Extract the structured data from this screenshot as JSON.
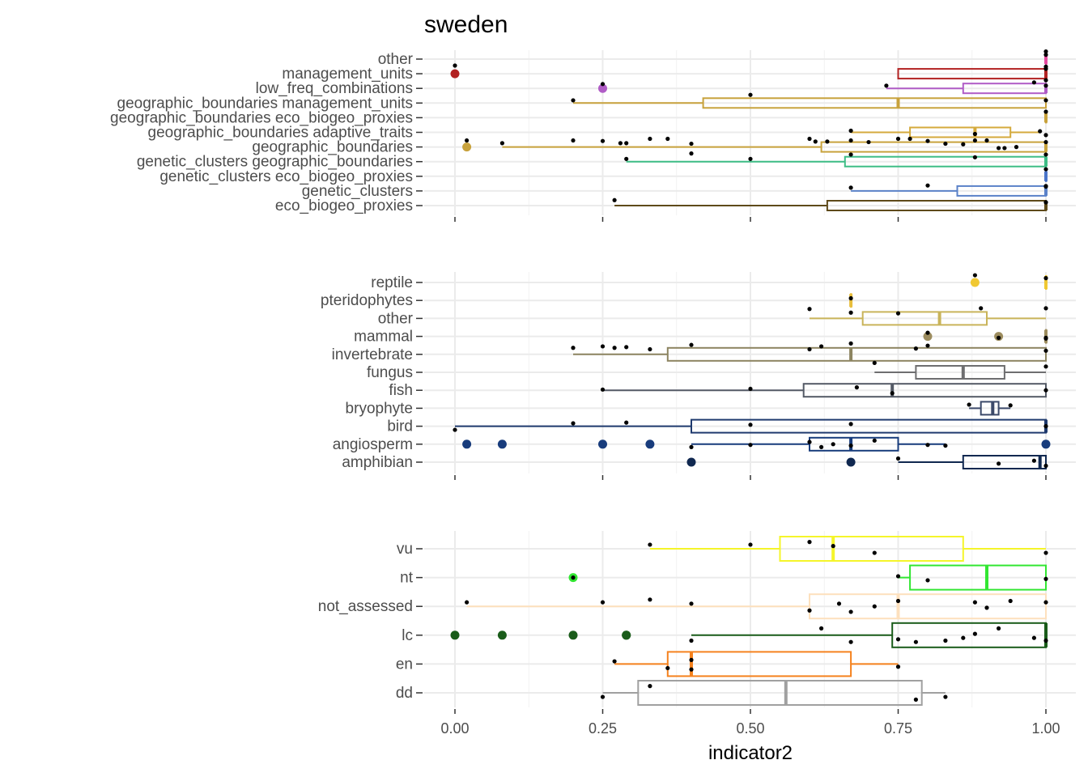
{
  "chart_data": {
    "type": "box",
    "title": "sweden",
    "xlabel": "indicator2",
    "xlim": [
      0,
      1
    ],
    "x_ticks": [
      0.0,
      0.25,
      0.5,
      0.75,
      1.0
    ],
    "x_tick_labels": [
      "0.00",
      "0.25",
      "0.50",
      "0.75",
      "1.00"
    ],
    "grid": true,
    "panels": [
      {
        "name": "panel-1",
        "categories": [
          {
            "label": "other",
            "color": "#e64ba0",
            "q1": 1.0,
            "median": 1.0,
            "q3": 1.0,
            "whisker_low": 1.0,
            "whisker_high": 1.0,
            "outliers": [],
            "points": [
              1.0,
              1.0
            ]
          },
          {
            "label": "management_units",
            "color": "#b22222",
            "q1": 0.75,
            "median": 1.0,
            "q3": 1.0,
            "whisker_low": 0.75,
            "whisker_high": 1.0,
            "outliers": [
              0.0
            ],
            "points": [
              0.0,
              1.0,
              1.0
            ]
          },
          {
            "label": "low_freq_combinations",
            "color": "#b05cc6",
            "q1": 0.86,
            "median": 1.0,
            "q3": 1.0,
            "whisker_low": 0.73,
            "whisker_high": 1.0,
            "outliers": [
              0.25
            ],
            "points": [
              0.25,
              0.73,
              0.98,
              1.0,
              1.0
            ]
          },
          {
            "label": "geographic_boundaries management_units",
            "color": "#c8a23c",
            "q1": 0.42,
            "median": 0.75,
            "q3": 1.0,
            "whisker_low": 0.2,
            "whisker_high": 1.0,
            "outliers": [],
            "points": [
              0.2,
              0.5,
              1.0
            ]
          },
          {
            "label": "geographic_boundaries eco_biogeo_proxies",
            "color": "#c8a23c",
            "q1": 1.0,
            "median": 1.0,
            "q3": 1.0,
            "whisker_low": 1.0,
            "whisker_high": 1.0,
            "outliers": [],
            "points": [
              1.0
            ]
          },
          {
            "label": "geographic_boundaries adaptive_traits",
            "color": "#d4aa3c",
            "q1": 0.77,
            "median": 0.88,
            "q3": 0.94,
            "whisker_low": 0.67,
            "whisker_high": 0.99,
            "outliers": [],
            "points": [
              0.67,
              0.88,
              0.99,
              1.0
            ]
          },
          {
            "label": "geographic_boundaries",
            "color": "#c8a23c",
            "q1": 0.62,
            "median": 1.0,
            "q3": 1.0,
            "whisker_low": 0.08,
            "whisker_high": 1.0,
            "outliers": [
              0.02
            ],
            "points": [
              0.02,
              0.08,
              0.2,
              0.25,
              0.28,
              0.29,
              0.33,
              0.36,
              0.4,
              0.6,
              0.61,
              0.63,
              0.67,
              0.7,
              0.75,
              0.77,
              0.8,
              0.83,
              0.86,
              0.88,
              0.9,
              0.92,
              0.93,
              0.95,
              1.0
            ]
          },
          {
            "label": "genetic_clusters geographic_boundaries",
            "color": "#3dbd85",
            "q1": 0.66,
            "median": 1.0,
            "q3": 1.0,
            "whisker_low": 0.29,
            "whisker_high": 1.0,
            "outliers": [],
            "points": [
              0.29,
              0.4,
              0.5,
              0.67,
              0.88,
              1.0
            ]
          },
          {
            "label": "genetic_clusters eco_biogeo_proxies",
            "color": "#4a74c9",
            "q1": 1.0,
            "median": 1.0,
            "q3": 1.0,
            "whisker_low": 1.0,
            "whisker_high": 1.0,
            "outliers": [],
            "points": [
              1.0
            ]
          },
          {
            "label": "genetic_clusters",
            "color": "#5b82c8",
            "q1": 0.85,
            "median": 1.0,
            "q3": 1.0,
            "whisker_low": 0.67,
            "whisker_high": 1.0,
            "outliers": [],
            "points": [
              0.67,
              0.8,
              1.0,
              1.0
            ]
          },
          {
            "label": "eco_biogeo_proxies",
            "color": "#5e4a1a",
            "q1": 0.63,
            "median": 1.0,
            "q3": 1.0,
            "whisker_low": 0.27,
            "whisker_high": 1.0,
            "outliers": [],
            "points": [
              0.27,
              1.0,
              1.0
            ]
          }
        ]
      },
      {
        "name": "panel-2",
        "categories": [
          {
            "label": "reptile",
            "color": "#f0c832",
            "q1": 1.0,
            "median": 1.0,
            "q3": 1.0,
            "whisker_low": 1.0,
            "whisker_high": 1.0,
            "outliers": [
              0.88
            ],
            "points": [
              0.88,
              1.0
            ]
          },
          {
            "label": "pteridophytes",
            "color": "#e8be3c",
            "q1": 0.67,
            "median": 0.67,
            "q3": 0.67,
            "whisker_low": 0.67,
            "whisker_high": 0.67,
            "outliers": [],
            "points": [
              0.67
            ]
          },
          {
            "label": "other",
            "color": "#c9b45a",
            "q1": 0.69,
            "median": 0.82,
            "q3": 0.9,
            "whisker_low": 0.6,
            "whisker_high": 1.0,
            "outliers": [],
            "points": [
              0.6,
              0.67,
              0.75,
              0.89,
              1.0
            ]
          },
          {
            "label": "mammal",
            "color": "#9c8c5e",
            "q1": 1.0,
            "median": 1.0,
            "q3": 1.0,
            "whisker_low": 1.0,
            "whisker_high": 1.0,
            "outliers": [
              0.8,
              0.92
            ],
            "points": [
              0.8,
              0.92,
              1.0,
              1.0
            ]
          },
          {
            "label": "invertebrate",
            "color": "#8c8460",
            "q1": 0.36,
            "median": 0.67,
            "q3": 1.0,
            "whisker_low": 0.2,
            "whisker_high": 1.0,
            "outliers": [],
            "points": [
              0.2,
              0.25,
              0.27,
              0.29,
              0.33,
              0.4,
              0.6,
              0.62,
              0.67,
              0.78,
              0.8,
              1.0
            ]
          },
          {
            "label": "fungus",
            "color": "#6e6e70",
            "q1": 0.78,
            "median": 0.86,
            "q3": 0.93,
            "whisker_low": 0.71,
            "whisker_high": 1.0,
            "outliers": [],
            "points": [
              0.71,
              1.0
            ]
          },
          {
            "label": "fish",
            "color": "#545a66",
            "q1": 0.59,
            "median": 0.74,
            "q3": 1.0,
            "whisker_low": 0.25,
            "whisker_high": 1.0,
            "outliers": [],
            "points": [
              0.25,
              0.5,
              0.68,
              0.74,
              1.0
            ]
          },
          {
            "label": "bryophyte",
            "color": "#3c4a6a",
            "q1": 0.89,
            "median": 0.91,
            "q3": 0.92,
            "whisker_low": 0.87,
            "whisker_high": 0.94,
            "outliers": [],
            "points": [
              0.87,
              0.94
            ]
          },
          {
            "label": "bird",
            "color": "#1f3a6e",
            "q1": 0.4,
            "median": 1.0,
            "q3": 1.0,
            "whisker_low": 0.0,
            "whisker_high": 1.0,
            "outliers": [],
            "points": [
              0.0,
              0.2,
              0.29,
              0.5,
              0.67,
              1.0
            ]
          },
          {
            "label": "angiosperm",
            "color": "#183c7c",
            "q1": 0.6,
            "median": 0.67,
            "q3": 0.75,
            "whisker_low": 0.4,
            "whisker_high": 0.83,
            "outliers": [
              0.02,
              0.08,
              0.25,
              0.33,
              1.0
            ],
            "points": [
              0.4,
              0.5,
              0.6,
              0.62,
              0.64,
              0.67,
              0.71,
              0.8,
              0.83
            ]
          },
          {
            "label": "amphibian",
            "color": "#102850",
            "q1": 0.86,
            "median": 0.99,
            "q3": 1.0,
            "whisker_low": 0.75,
            "whisker_high": 1.0,
            "outliers": [
              0.4,
              0.67
            ],
            "points": [
              0.75,
              0.92,
              0.98,
              1.0
            ]
          }
        ]
      },
      {
        "name": "panel-3",
        "categories": [
          {
            "label": "vu",
            "color": "#f5f52a",
            "q1": 0.55,
            "median": 0.64,
            "q3": 0.86,
            "whisker_low": 0.33,
            "whisker_high": 1.0,
            "outliers": [],
            "points": [
              0.33,
              0.5,
              0.6,
              0.64,
              0.71,
              1.0
            ]
          },
          {
            "label": "nt",
            "color": "#32e632",
            "q1": 0.77,
            "median": 0.9,
            "q3": 1.0,
            "whisker_low": 0.75,
            "whisker_high": 1.0,
            "outliers": [
              0.2
            ],
            "points": [
              0.2,
              0.75,
              0.8,
              1.0
            ]
          },
          {
            "label": "not_assessed",
            "color": "#fde0bd",
            "q1": 0.6,
            "median": 0.75,
            "q3": 1.0,
            "whisker_low": 0.02,
            "whisker_high": 1.0,
            "outliers": [],
            "points": [
              0.02,
              0.25,
              0.33,
              0.4,
              0.6,
              0.65,
              0.67,
              0.71,
              0.75,
              0.88,
              0.9,
              0.94,
              1.0
            ]
          },
          {
            "label": "lc",
            "color": "#1a5c1a",
            "q1": 0.74,
            "median": 1.0,
            "q3": 1.0,
            "whisker_low": 0.4,
            "whisker_high": 1.0,
            "outliers": [
              0.0,
              0.08,
              0.2,
              0.29,
              0.29
            ],
            "points": [
              0.4,
              0.62,
              0.67,
              0.75,
              0.78,
              0.83,
              0.86,
              0.88,
              0.92,
              0.98,
              1.0
            ]
          },
          {
            "label": "en",
            "color": "#f5821e",
            "q1": 0.36,
            "median": 0.4,
            "q3": 0.67,
            "whisker_low": 0.27,
            "whisker_high": 0.75,
            "outliers": [],
            "points": [
              0.27,
              0.36,
              0.4,
              0.4,
              0.75
            ]
          },
          {
            "label": "dd",
            "color": "#a0a0a0",
            "q1": 0.31,
            "median": 0.56,
            "q3": 0.79,
            "whisker_low": 0.25,
            "whisker_high": 0.83,
            "outliers": [],
            "points": [
              0.25,
              0.33,
              0.78,
              0.83
            ]
          }
        ]
      }
    ]
  }
}
